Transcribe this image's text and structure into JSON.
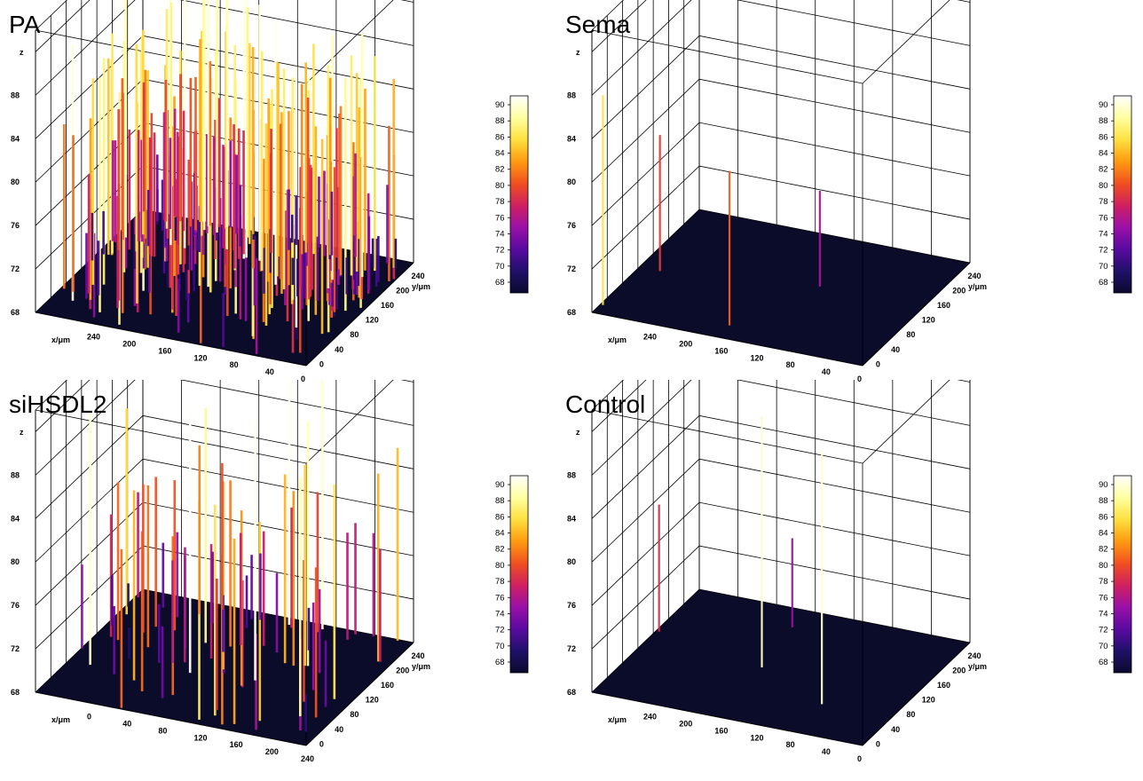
{
  "colormap": [
    "#0a0a2e",
    "#20106a",
    "#5a0aa0",
    "#9a10a8",
    "#d02060",
    "#f05020",
    "#ff9a10",
    "#ffe040",
    "#ffffa0",
    "#ffffff"
  ],
  "chart_data": [
    {
      "type": "bar3d",
      "title": "PA",
      "z_axis_label": "z",
      "x_axis_label": "x/μm",
      "y_axis_label": "y/μm",
      "z_ticks": [
        68,
        72,
        76,
        80,
        84,
        88
      ],
      "x_ticks": [
        240,
        200,
        160,
        120,
        80,
        40,
        0
      ],
      "y_ticks": [
        0,
        40,
        80,
        120,
        160,
        200,
        240
      ],
      "colorbar_ticks": [
        90,
        88,
        86,
        84,
        82,
        80,
        78,
        76,
        74,
        72,
        70,
        68
      ],
      "zlim": [
        68,
        92
      ],
      "density": "high"
    },
    {
      "type": "bar3d",
      "title": "Sema",
      "z_axis_label": "z",
      "x_axis_label": "x/μm",
      "y_axis_label": "y/μm",
      "z_ticks": [
        68,
        72,
        76,
        80,
        84,
        88
      ],
      "x_ticks": [
        240,
        200,
        160,
        120,
        80,
        40,
        0
      ],
      "y_ticks": [
        0,
        40,
        80,
        120,
        160,
        200,
        240
      ],
      "colorbar_ticks": [
        90,
        88,
        86,
        84,
        82,
        80,
        78,
        76,
        74,
        72,
        70,
        68
      ],
      "zlim": [
        68,
        92
      ],
      "density": "sparse"
    },
    {
      "type": "bar3d",
      "title": "siHSDL2",
      "z_axis_label": "z",
      "x_axis_label": "x/μm",
      "y_axis_label": "y/μm",
      "z_ticks": [
        68,
        72,
        76,
        80,
        84,
        88
      ],
      "x_ticks": [
        0,
        40,
        80,
        120,
        160,
        200,
        240
      ],
      "y_ticks": [
        0,
        40,
        80,
        120,
        160,
        200,
        240
      ],
      "colorbar_ticks": [
        90,
        88,
        86,
        84,
        82,
        80,
        78,
        76,
        74,
        72,
        70,
        68
      ],
      "zlim": [
        68,
        92
      ],
      "density": "medium"
    },
    {
      "type": "bar3d",
      "title": "Control",
      "z_axis_label": "z",
      "x_axis_label": "x/μm",
      "y_axis_label": "y/μm",
      "z_ticks": [
        68,
        72,
        76,
        80,
        84,
        88
      ],
      "x_ticks": [
        240,
        200,
        160,
        120,
        80,
        40,
        0
      ],
      "y_ticks": [
        0,
        40,
        80,
        120,
        160,
        200,
        240
      ],
      "colorbar_ticks": [
        90,
        88,
        86,
        84,
        82,
        80,
        78,
        76,
        74,
        72,
        70,
        68
      ],
      "zlim": [
        68,
        92
      ],
      "density": "sparse"
    }
  ]
}
